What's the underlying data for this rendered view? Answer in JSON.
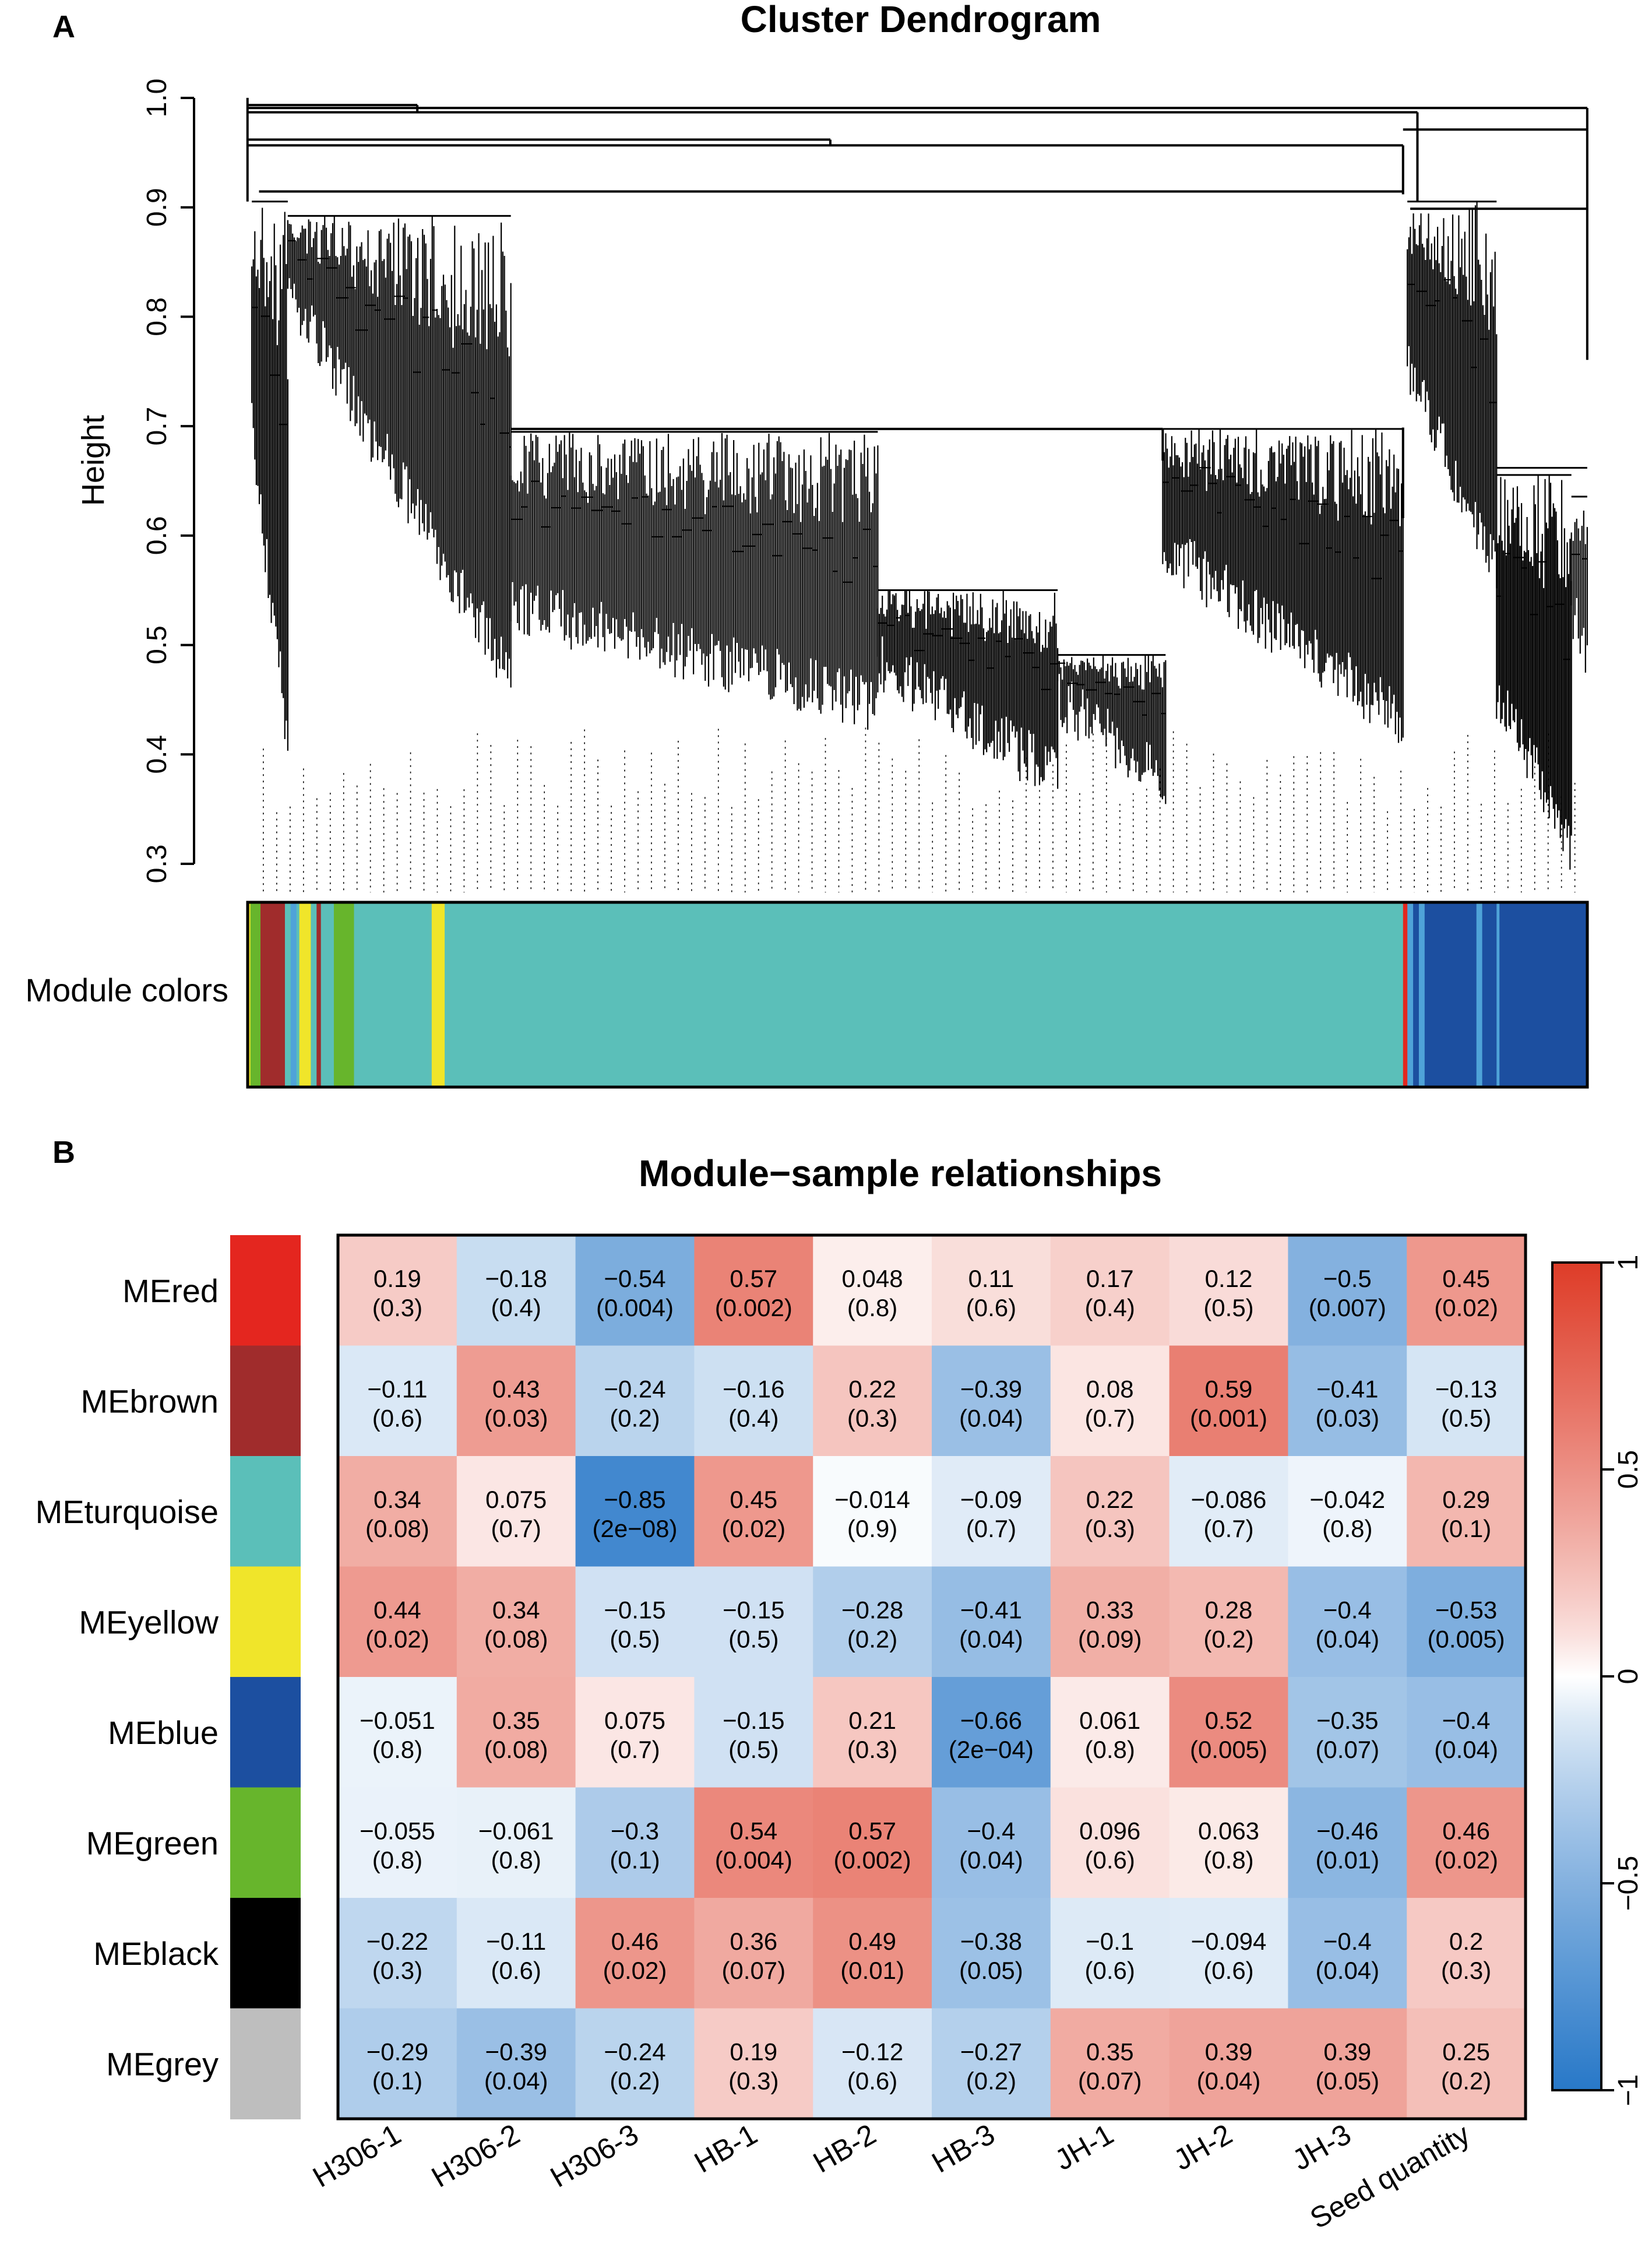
{
  "panel_a": {
    "label": "A",
    "title": "Cluster Dendrogram",
    "ylabel": "Height",
    "yticks": [
      "0.3",
      "0.4",
      "0.5",
      "0.6",
      "0.7",
      "0.8",
      "0.9",
      "1.0"
    ],
    "module_colors_label": "Module colors"
  },
  "panel_b": {
    "label": "B"
  },
  "colors": {
    "turquoise": "#5BBFB9",
    "blue": "#1C4FA0",
    "brown": "#A02C2C",
    "yellow": "#F0E52A",
    "green": "#67B52C",
    "red": "#E4261F",
    "black": "#000000",
    "grey": "#BEBEBE",
    "lightblue": "#4FA3D8",
    "positive": "#DE3C28",
    "negative": "#2878C8"
  },
  "chart_data": [
    {
      "type": "dendrogram",
      "title": "Cluster Dendrogram",
      "ylabel": "Height",
      "ylim": [
        0.3,
        1.0
      ],
      "annotation_track": "Module colors"
    },
    {
      "type": "heatmap",
      "title": "Module−sample relationships",
      "rows": [
        "MEred",
        "MEbrown",
        "MEturquoise",
        "MEyellow",
        "MEblue",
        "MEgreen",
        "MEblack",
        "MEgrey"
      ],
      "row_colors": [
        "red",
        "brown",
        "turquoise",
        "yellow",
        "blue",
        "green",
        "black",
        "grey"
      ],
      "columns": [
        "H306-1",
        "H306-2",
        "H306-3",
        "HB-1",
        "HB-2",
        "HB-3",
        "JH-1",
        "JH-2",
        "JH-3",
        "Seed quantity"
      ],
      "values": [
        [
          "0.19",
          "−0.18",
          "−0.54",
          "0.57",
          "0.048",
          "0.11",
          "0.17",
          "0.12",
          "−0.5",
          "0.45"
        ],
        [
          "−0.11",
          "0.43",
          "−0.24",
          "−0.16",
          "0.22",
          "−0.39",
          "0.08",
          "0.59",
          "−0.41",
          "−0.13"
        ],
        [
          "0.34",
          "0.075",
          "−0.85",
          "0.45",
          "−0.014",
          "−0.09",
          "0.22",
          "−0.086",
          "−0.042",
          "0.29"
        ],
        [
          "0.44",
          "0.34",
          "−0.15",
          "−0.15",
          "−0.28",
          "−0.41",
          "0.33",
          "0.28",
          "−0.4",
          "−0.53"
        ],
        [
          "−0.051",
          "0.35",
          "0.075",
          "−0.15",
          "0.21",
          "−0.66",
          "0.061",
          "0.52",
          "−0.35",
          "−0.4"
        ],
        [
          "−0.055",
          "−0.061",
          "−0.3",
          "0.54",
          "0.57",
          "−0.4",
          "0.096",
          "0.063",
          "−0.46",
          "0.46"
        ],
        [
          "−0.22",
          "−0.11",
          "0.46",
          "0.36",
          "0.49",
          "−0.38",
          "−0.1",
          "−0.094",
          "−0.4",
          "0.2"
        ],
        [
          "−0.29",
          "−0.39",
          "−0.24",
          "0.19",
          "−0.12",
          "−0.27",
          "0.35",
          "0.39",
          "0.39",
          "0.25"
        ]
      ],
      "pvalues": [
        [
          "(0.3)",
          "(0.4)",
          "(0.004)",
          "(0.002)",
          "(0.8)",
          "(0.6)",
          "(0.4)",
          "(0.5)",
          "(0.007)",
          "(0.02)"
        ],
        [
          "(0.6)",
          "(0.03)",
          "(0.2)",
          "(0.4)",
          "(0.3)",
          "(0.04)",
          "(0.7)",
          "(0.001)",
          "(0.03)",
          "(0.5)"
        ],
        [
          "(0.08)",
          "(0.7)",
          "(2e−08)",
          "(0.02)",
          "(0.9)",
          "(0.7)",
          "(0.3)",
          "(0.7)",
          "(0.8)",
          "(0.1)"
        ],
        [
          "(0.02)",
          "(0.08)",
          "(0.5)",
          "(0.5)",
          "(0.2)",
          "(0.04)",
          "(0.09)",
          "(0.2)",
          "(0.04)",
          "(0.005)"
        ],
        [
          "(0.8)",
          "(0.08)",
          "(0.7)",
          "(0.5)",
          "(0.3)",
          "(2e−04)",
          "(0.8)",
          "(0.005)",
          "(0.07)",
          "(0.04)"
        ],
        [
          "(0.8)",
          "(0.8)",
          "(0.1)",
          "(0.004)",
          "(0.002)",
          "(0.04)",
          "(0.6)",
          "(0.8)",
          "(0.01)",
          "(0.02)"
        ],
        [
          "(0.3)",
          "(0.6)",
          "(0.02)",
          "(0.07)",
          "(0.01)",
          "(0.05)",
          "(0.6)",
          "(0.6)",
          "(0.04)",
          "(0.3)"
        ],
        [
          "(0.1)",
          "(0.04)",
          "(0.2)",
          "(0.3)",
          "(0.6)",
          "(0.2)",
          "(0.07)",
          "(0.04)",
          "(0.05)",
          "(0.2)"
        ]
      ],
      "colorbar": {
        "range": [
          -1,
          1
        ],
        "ticks": [
          "1",
          "0.5",
          "0",
          "−0.5",
          "−1"
        ],
        "tick_values": [
          1,
          0.5,
          0,
          -0.5,
          -1
        ]
      }
    }
  ]
}
